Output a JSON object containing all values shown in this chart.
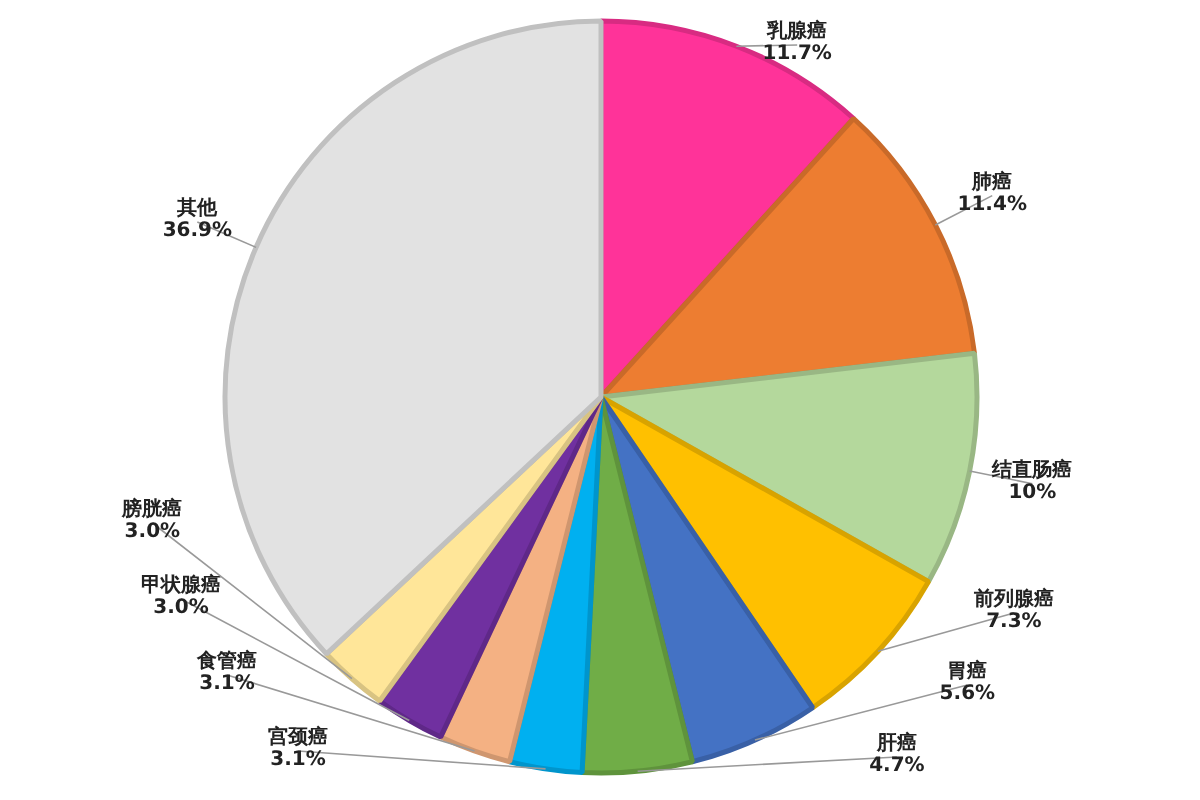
{
  "chart_data": {
    "type": "pie",
    "categories": [
      "乳腺癌",
      "肺癌",
      "结直肠癌",
      "前列腺癌",
      "胃癌",
      "肝癌",
      "宫颈癌",
      "食管癌",
      "甲状腺癌",
      "膀胱癌",
      "其他"
    ],
    "values": [
      11.7,
      11.4,
      10,
      7.3,
      5.6,
      4.7,
      3.1,
      3.1,
      3.0,
      3.0,
      36.9
    ],
    "colors": [
      "#ff3399",
      "#ed7d31",
      "#b4d89c",
      "#ffc000",
      "#4472c4",
      "#70ad47",
      "#00b0f0",
      "#f4b183",
      "#7030a0",
      "#ffe699",
      "#e2e2e2"
    ],
    "value_labels": [
      "11.7%",
      "11.4%",
      "10%",
      "7.3%",
      "5.6%",
      "4.7%",
      "3.1%",
      "3.1%",
      "3.0%",
      "3.0%",
      "36.9%"
    ]
  }
}
